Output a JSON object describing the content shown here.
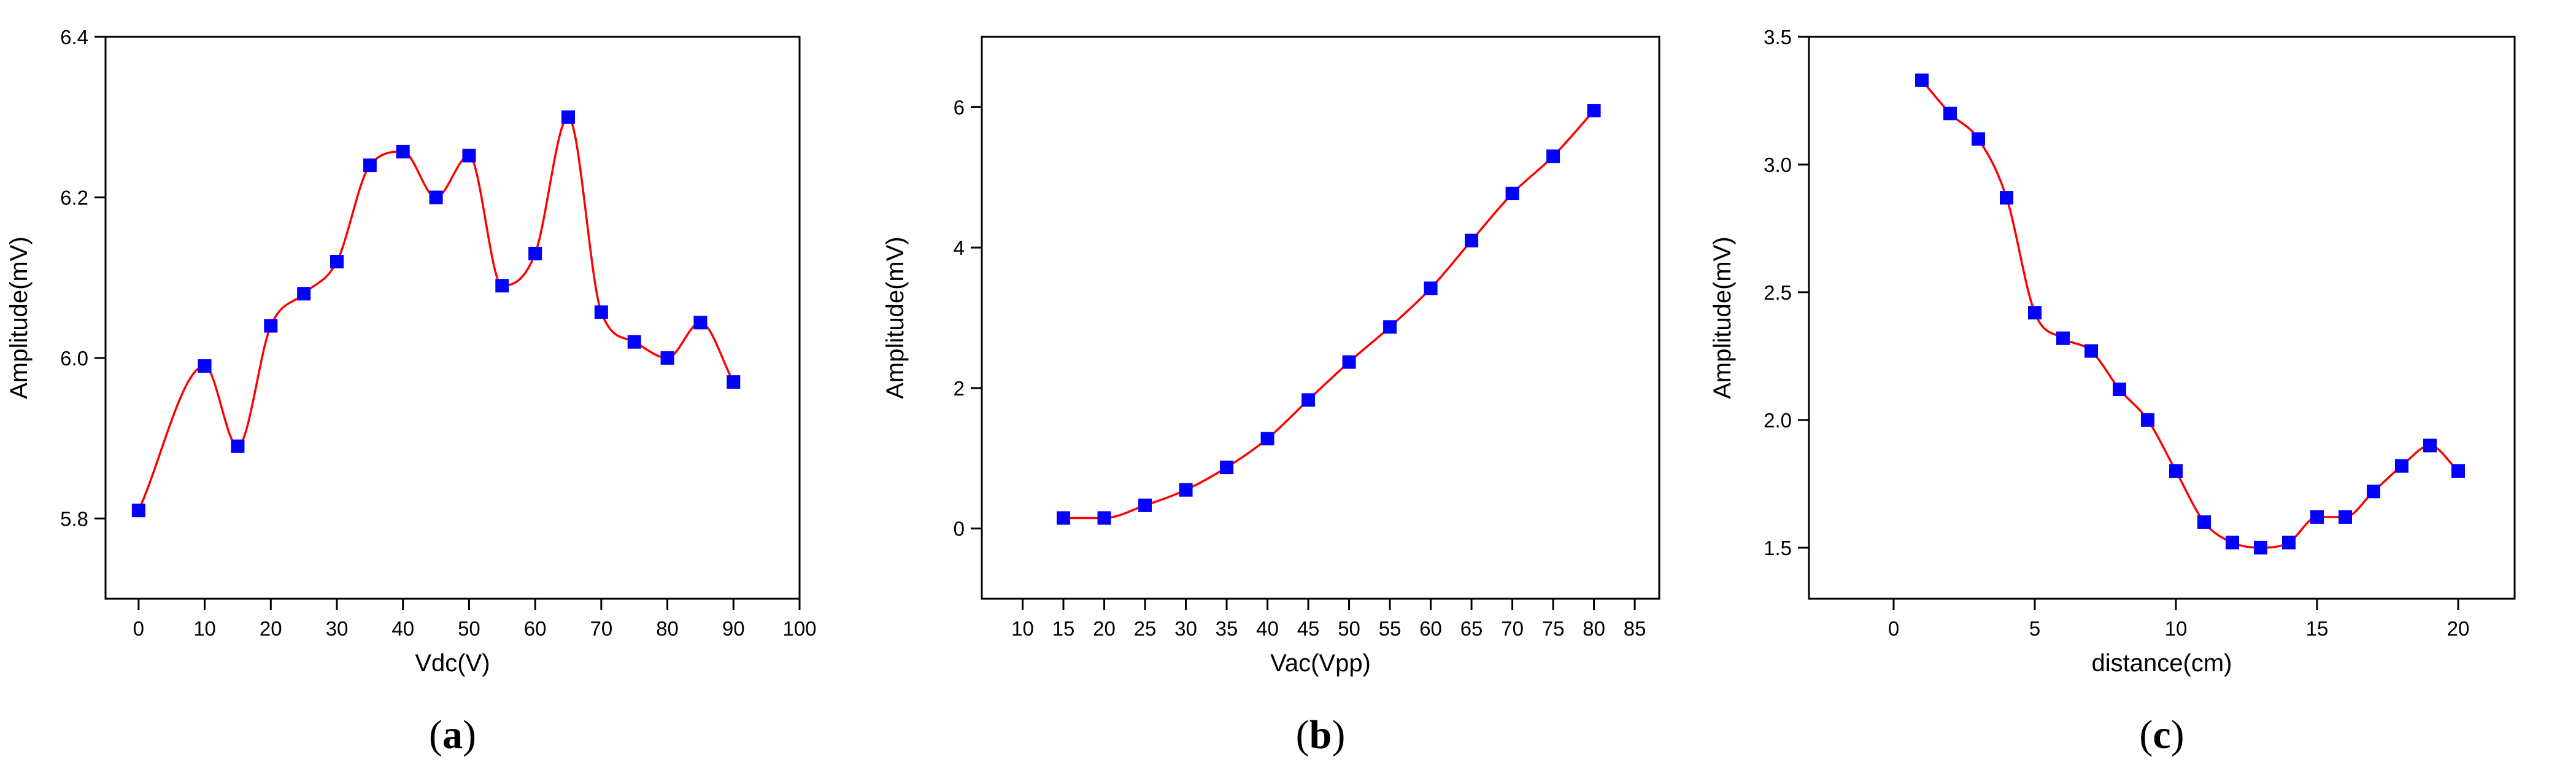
{
  "chart_data": [
    {
      "type": "line",
      "panel_label": "(a)",
      "panel_letter": "a",
      "xlabel": "Vdc(V)",
      "ylabel": "Amplitude(mV)",
      "xlim": [
        -5,
        100
      ],
      "ylim": [
        5.7,
        6.4
      ],
      "xticks": [
        0,
        10,
        20,
        30,
        40,
        50,
        60,
        70,
        80,
        90,
        100
      ],
      "yticks": [
        5.8,
        6.0,
        6.2,
        6.4
      ],
      "ytick_labels": [
        "5.8",
        "6.0",
        "6.2",
        "6.4"
      ],
      "series": [
        {
          "name": "Amplitude",
          "line_color": "#ff0000",
          "marker_color": "#0000ff",
          "x": [
            0,
            10,
            15,
            20,
            25,
            30,
            35,
            40,
            45,
            50,
            55,
            60,
            65,
            70,
            75,
            80,
            85,
            90
          ],
          "y": [
            5.81,
            5.99,
            5.89,
            6.04,
            6.08,
            6.12,
            6.24,
            6.257,
            6.2,
            6.252,
            6.09,
            6.13,
            6.3,
            6.057,
            6.02,
            6.0,
            6.044,
            5.97
          ]
        }
      ]
    },
    {
      "type": "line",
      "panel_label": "(b)",
      "panel_letter": "b",
      "xlabel": "Vac(Vpp)",
      "ylabel": "Amplitude(mV)",
      "xlim": [
        5,
        88
      ],
      "ylim": [
        -1,
        7
      ],
      "xticks": [
        10,
        15,
        20,
        25,
        30,
        35,
        40,
        45,
        50,
        55,
        60,
        65,
        70,
        75,
        80,
        85
      ],
      "yticks": [
        0,
        2,
        4,
        6
      ],
      "ytick_labels": [
        "0",
        "2",
        "4",
        "6"
      ],
      "series": [
        {
          "name": "Amplitude",
          "line_color": "#ff0000",
          "marker_color": "#0000ff",
          "x": [
            15,
            20,
            25,
            30,
            35,
            40,
            45,
            50,
            55,
            60,
            65,
            70,
            75,
            80
          ],
          "y": [
            0.15,
            0.15,
            0.33,
            0.55,
            0.87,
            1.28,
            1.83,
            2.37,
            2.87,
            3.42,
            4.1,
            4.77,
            5.3,
            5.95
          ]
        }
      ]
    },
    {
      "type": "line",
      "panel_label": "(c)",
      "panel_letter": "c",
      "xlabel": "distance(cm)",
      "ylabel": "Amplitude(mV)",
      "xlim": [
        -3,
        22
      ],
      "ylim": [
        1.3,
        3.5
      ],
      "xticks": [
        0,
        5,
        10,
        15,
        20
      ],
      "yticks": [
        1.5,
        2.0,
        2.5,
        3.0,
        3.5
      ],
      "ytick_labels": [
        "1.5",
        "2.0",
        "2.5",
        "3.0",
        "3.5"
      ],
      "series": [
        {
          "name": "Amplitude",
          "line_color": "#ff0000",
          "marker_color": "#0000ff",
          "x": [
            1,
            2,
            3,
            4,
            5,
            6,
            7,
            8,
            9,
            10,
            11,
            12,
            13,
            14,
            15,
            16,
            17,
            18,
            19,
            20
          ],
          "y": [
            3.33,
            3.2,
            3.1,
            2.87,
            2.42,
            2.32,
            2.27,
            2.12,
            2.0,
            1.8,
            1.6,
            1.52,
            1.5,
            1.52,
            1.62,
            1.62,
            1.72,
            1.82,
            1.9,
            1.8
          ]
        }
      ]
    }
  ]
}
